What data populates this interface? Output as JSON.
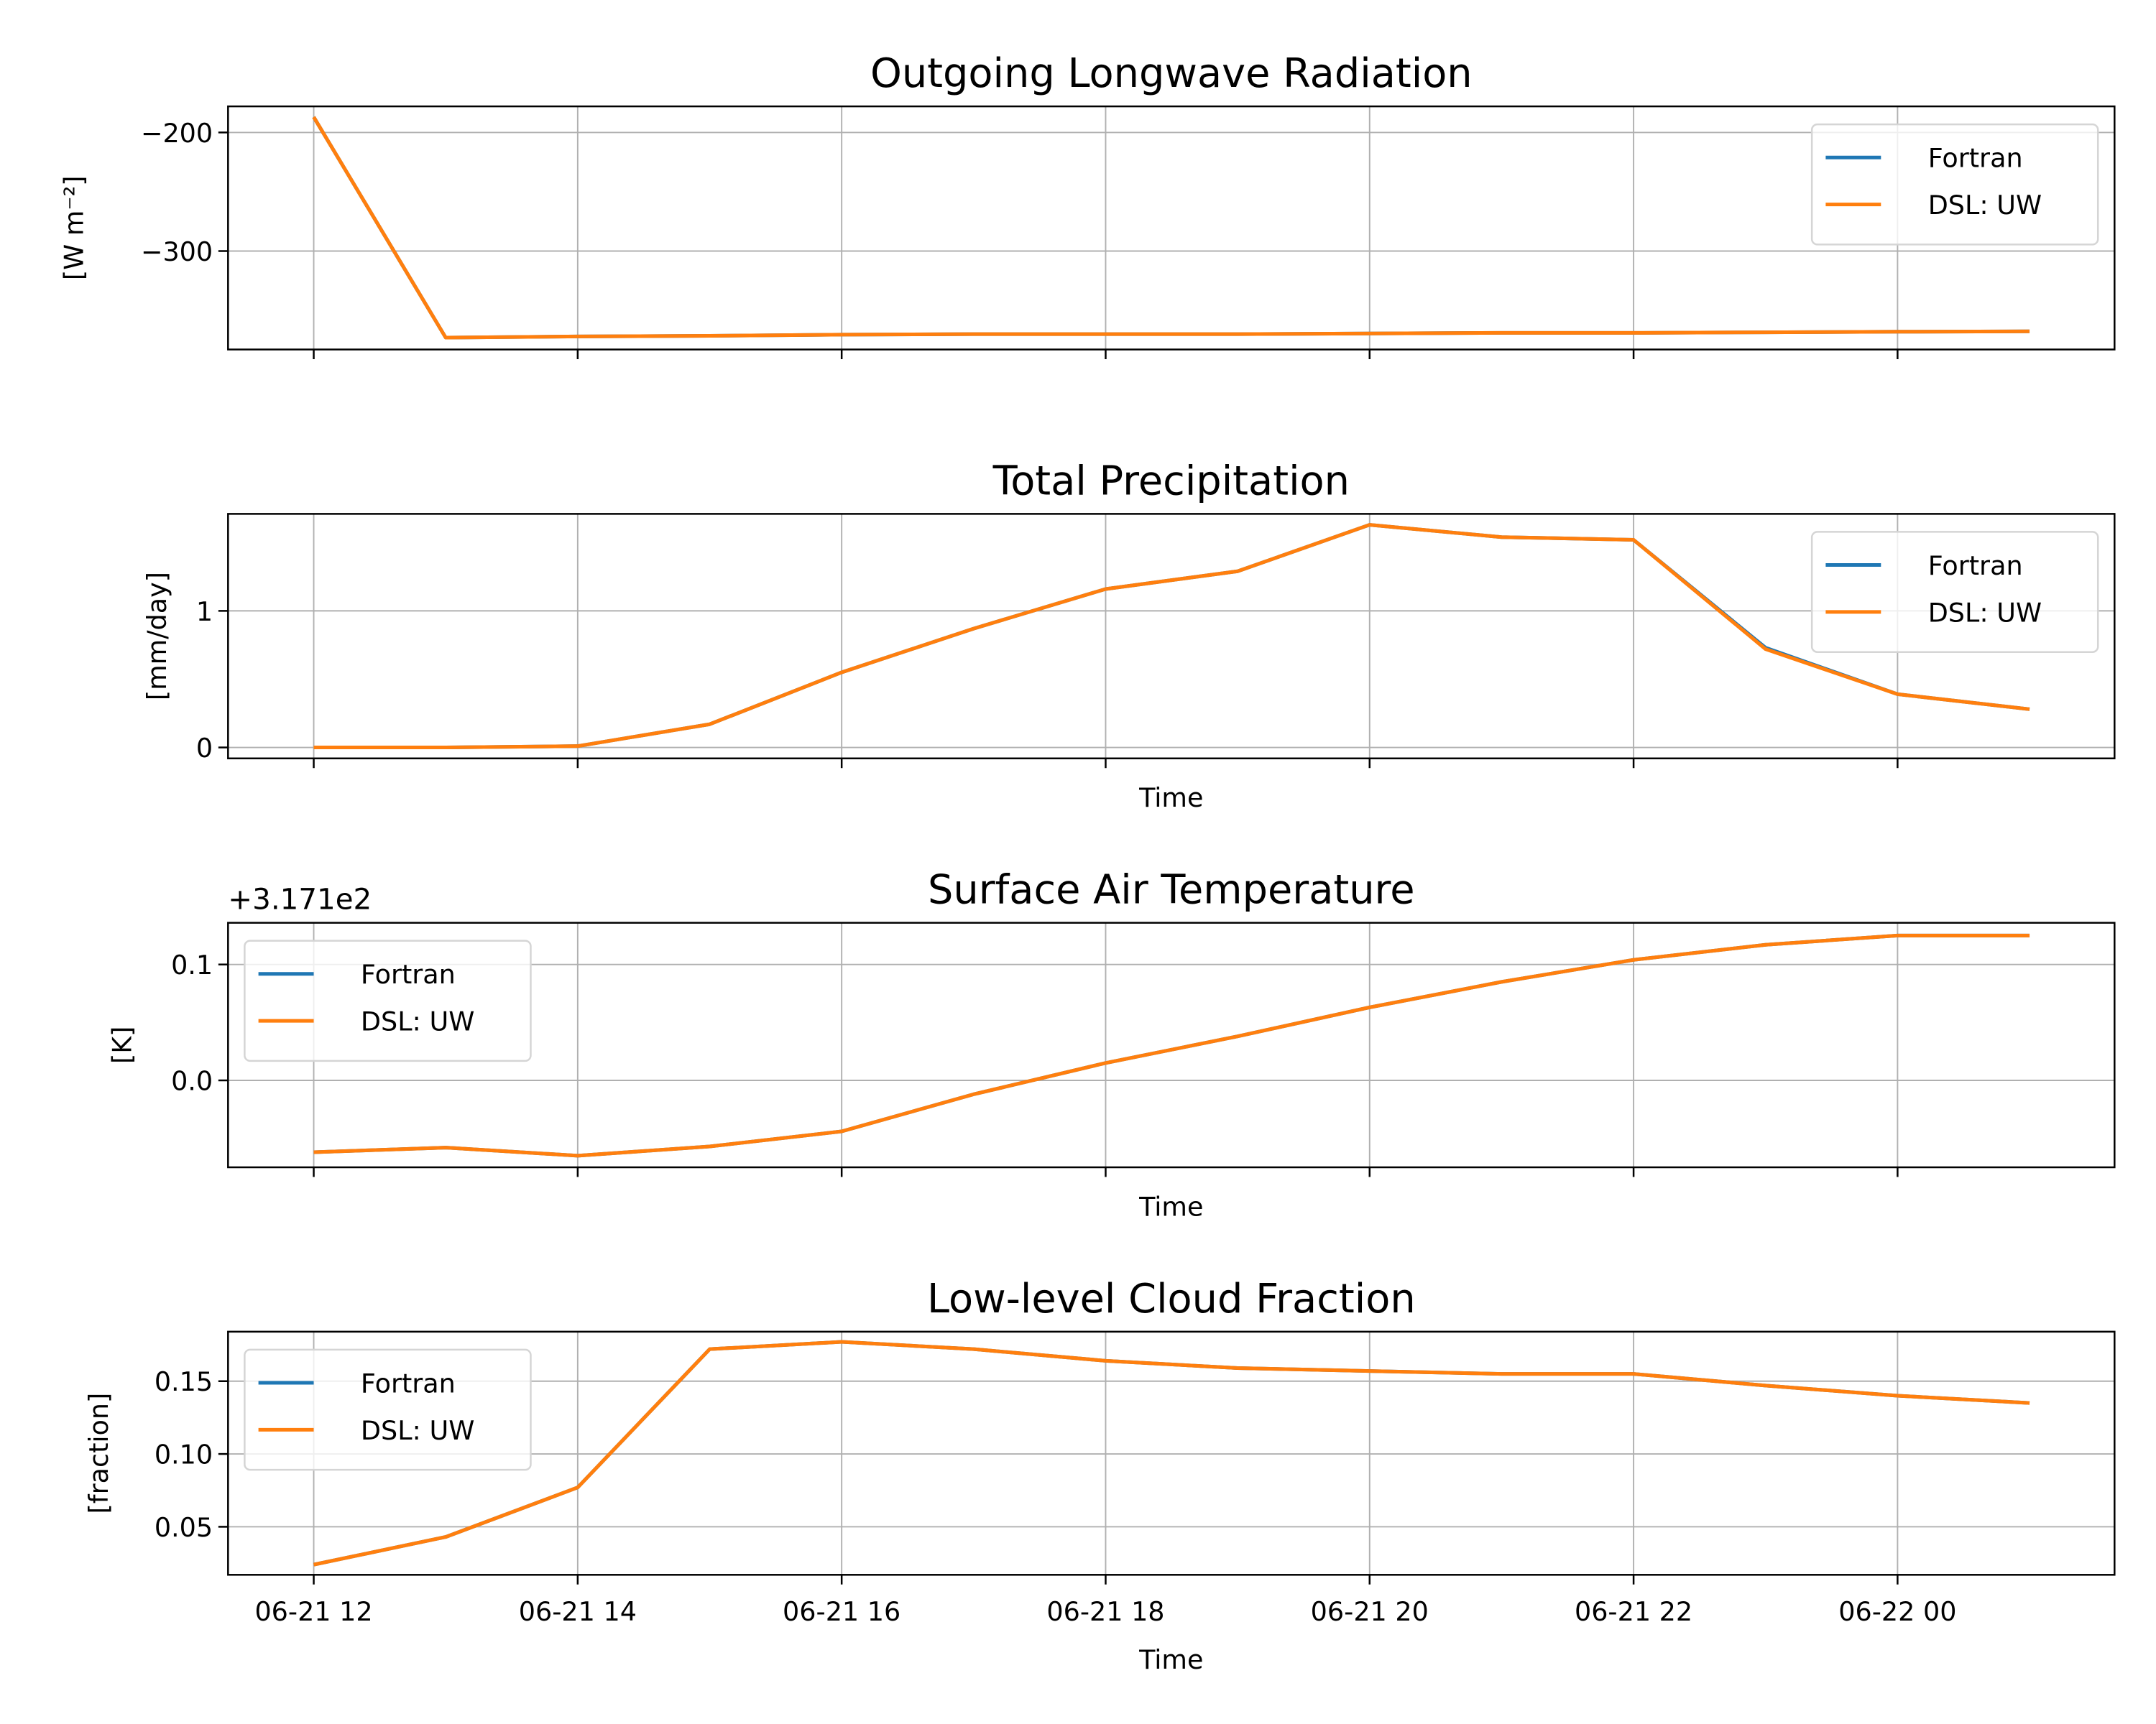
{
  "colors": {
    "Fortran": "#1f77b4",
    "DSL: UW": "#ff7f0e",
    "grid": "#b0b0b0"
  },
  "chart_data": [
    {
      "type": "line",
      "title": "Outgoing Longwave Radiation",
      "xlabel": "",
      "ylabel": "[W m$^{-2}$]",
      "ylabel_display": "[W m⁻²]",
      "ylim": [
        -383,
        -178
      ],
      "yticks": [
        -200,
        -300
      ],
      "ytick_labels": [
        "−200",
        "−300"
      ],
      "grid": true,
      "legend": "upper-right",
      "x": [
        "06-21 12",
        "06-21 13",
        "06-21 14",
        "06-21 15",
        "06-21 16",
        "06-21 17",
        "06-21 18",
        "06-21 19",
        "06-21 20",
        "06-21 21",
        "06-21 22",
        "06-21 23",
        "06-22 00",
        "06-22 01"
      ],
      "series": [
        {
          "name": "Fortran",
          "values": [
            -187,
            -373,
            -372,
            -371.5,
            -370.5,
            -370,
            -370,
            -370,
            -369.5,
            -369,
            -369,
            -368.5,
            -368,
            -367.7
          ]
        },
        {
          "name": "DSL: UW",
          "values": [
            -187,
            -373,
            -372,
            -371.5,
            -370.5,
            -370,
            -370,
            -370,
            -369.5,
            -369,
            -369,
            -368.5,
            -368,
            -367.7
          ]
        }
      ]
    },
    {
      "type": "line",
      "title": "Total Precipitation",
      "xlabel": "Time",
      "ylabel": "[mm/day]",
      "ylim": [
        -0.08,
        1.71
      ],
      "yticks": [
        0,
        1
      ],
      "ytick_labels": [
        "0",
        "1"
      ],
      "grid": true,
      "legend": "upper-right",
      "x": [
        "06-21 12",
        "06-21 13",
        "06-21 14",
        "06-21 15",
        "06-21 16",
        "06-21 17",
        "06-21 18",
        "06-21 19",
        "06-21 20",
        "06-21 21",
        "06-21 22",
        "06-21 23",
        "06-22 00",
        "06-22 01"
      ],
      "series": [
        {
          "name": "Fortran",
          "values": [
            0,
            0,
            0.01,
            0.17,
            0.55,
            0.87,
            1.16,
            1.29,
            1.63,
            1.54,
            1.52,
            0.73,
            0.39,
            0.28
          ]
        },
        {
          "name": "DSL: UW",
          "values": [
            0,
            0,
            0.01,
            0.17,
            0.55,
            0.87,
            1.16,
            1.29,
            1.63,
            1.54,
            1.52,
            0.72,
            0.39,
            0.28
          ]
        }
      ]
    },
    {
      "type": "line",
      "title": "Surface Air Temperature",
      "xlabel": "Time",
      "ylabel": "[K]",
      "offset_label": "+3.171e2",
      "ylim": [
        -0.075,
        0.136
      ],
      "yticks": [
        0.1,
        0.0
      ],
      "ytick_labels": [
        "0.1",
        "0.0"
      ],
      "grid": true,
      "legend": "upper-left",
      "x": [
        "06-21 12",
        "06-21 13",
        "06-21 14",
        "06-21 15",
        "06-21 16",
        "06-21 17",
        "06-21 18",
        "06-21 19",
        "06-21 20",
        "06-21 21",
        "06-21 22",
        "06-21 23",
        "06-22 00",
        "06-22 01"
      ],
      "series": [
        {
          "name": "Fortran",
          "values": [
            -0.062,
            -0.058,
            -0.065,
            -0.057,
            -0.044,
            -0.012,
            0.015,
            0.038,
            0.063,
            0.085,
            0.104,
            0.117,
            0.125,
            0.125
          ]
        },
        {
          "name": "DSL: UW",
          "values": [
            -0.062,
            -0.058,
            -0.065,
            -0.057,
            -0.044,
            -0.012,
            0.015,
            0.038,
            0.063,
            0.085,
            0.104,
            0.117,
            0.125,
            0.125
          ]
        }
      ]
    },
    {
      "type": "line",
      "title": "Low-level Cloud Fraction",
      "xlabel": "Time",
      "ylabel": "[fraction]",
      "ylim": [
        0.017,
        0.184
      ],
      "yticks": [
        0.15,
        0.1,
        0.05
      ],
      "ytick_labels": [
        "0.15",
        "0.10",
        "0.05"
      ],
      "xtick_labels": [
        "06-21 12",
        "06-21 14",
        "06-21 16",
        "06-21 18",
        "06-21 20",
        "06-21 22",
        "06-22 00"
      ],
      "grid": true,
      "legend": "upper-left",
      "x": [
        "06-21 12",
        "06-21 13",
        "06-21 14",
        "06-21 15",
        "06-21 16",
        "06-21 17",
        "06-21 18",
        "06-21 19",
        "06-21 20",
        "06-21 21",
        "06-21 22",
        "06-21 23",
        "06-22 00",
        "06-22 01"
      ],
      "series": [
        {
          "name": "Fortran",
          "values": [
            0.024,
            0.043,
            0.077,
            0.172,
            0.177,
            0.172,
            0.164,
            0.159,
            0.157,
            0.155,
            0.155,
            0.147,
            0.14,
            0.135
          ]
        },
        {
          "name": "DSL: UW",
          "values": [
            0.024,
            0.043,
            0.077,
            0.172,
            0.177,
            0.172,
            0.164,
            0.159,
            0.157,
            0.155,
            0.155,
            0.147,
            0.14,
            0.135
          ]
        }
      ]
    }
  ]
}
